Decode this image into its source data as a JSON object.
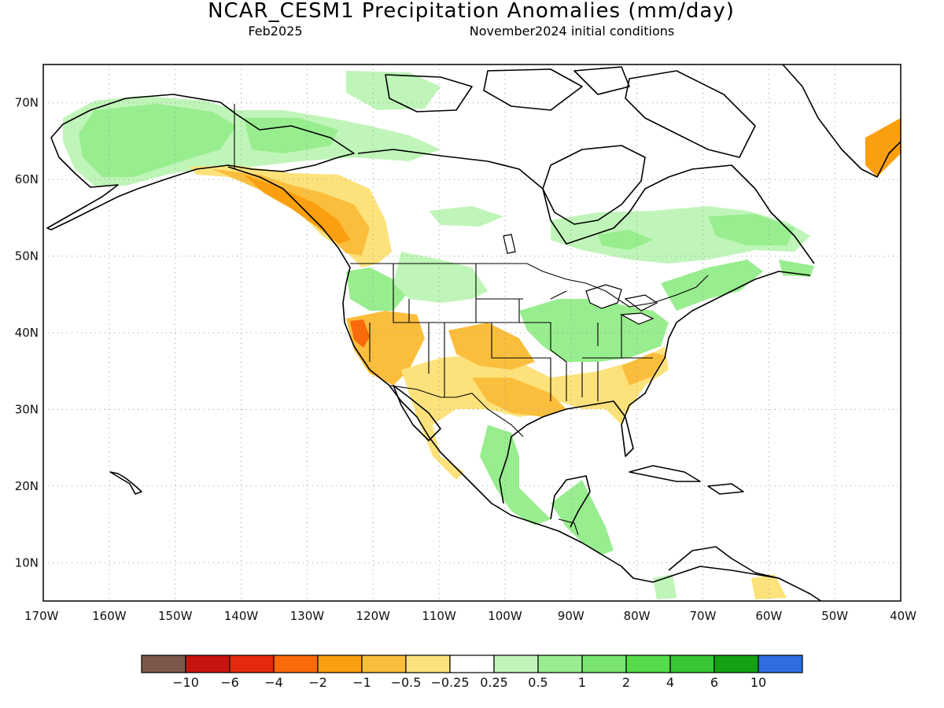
{
  "title": "NCAR_CESM1 Precipitation Anomalies (mm/day)",
  "subtitle_left": "Feb2025",
  "subtitle_right": "November2024 initial conditions",
  "map": {
    "lon_range": [
      -170,
      -40
    ],
    "lat_range": [
      5,
      75
    ],
    "lat_ticks": [
      {
        "value": 70,
        "label": "70N"
      },
      {
        "value": 60,
        "label": "60N"
      },
      {
        "value": 50,
        "label": "50N"
      },
      {
        "value": 40,
        "label": "40N"
      },
      {
        "value": 30,
        "label": "30N"
      },
      {
        "value": 20,
        "label": "20N"
      },
      {
        "value": 10,
        "label": "10N"
      }
    ],
    "lon_ticks": [
      {
        "value": -170,
        "label": "170W"
      },
      {
        "value": -160,
        "label": "160W"
      },
      {
        "value": -150,
        "label": "150W"
      },
      {
        "value": -140,
        "label": "140W"
      },
      {
        "value": -130,
        "label": "130W"
      },
      {
        "value": -120,
        "label": "120W"
      },
      {
        "value": -110,
        "label": "110W"
      },
      {
        "value": -100,
        "label": "100W"
      },
      {
        "value": -90,
        "label": "90W"
      },
      {
        "value": -80,
        "label": "80W"
      },
      {
        "value": -70,
        "label": "70W"
      },
      {
        "value": -60,
        "label": "60W"
      },
      {
        "value": -50,
        "label": "50W"
      },
      {
        "value": -40,
        "label": "40W"
      }
    ]
  },
  "colorbar": {
    "colors": [
      "#7d584a",
      "#c8140f",
      "#e6290e",
      "#fa6a0a",
      "#fb9f0e",
      "#fbbe3c",
      "#fde27c",
      "#ffffff",
      "#bff5b8",
      "#98ed8e",
      "#79e46d",
      "#54dc4b",
      "#37c634",
      "#12a212",
      "#2f6ee2"
    ],
    "labels": [
      "−10",
      "−6",
      "−4",
      "−2",
      "−1",
      "−0.5",
      "−0.25",
      "0.25",
      "0.5",
      "1",
      "2",
      "4",
      "6",
      "10"
    ]
  }
}
